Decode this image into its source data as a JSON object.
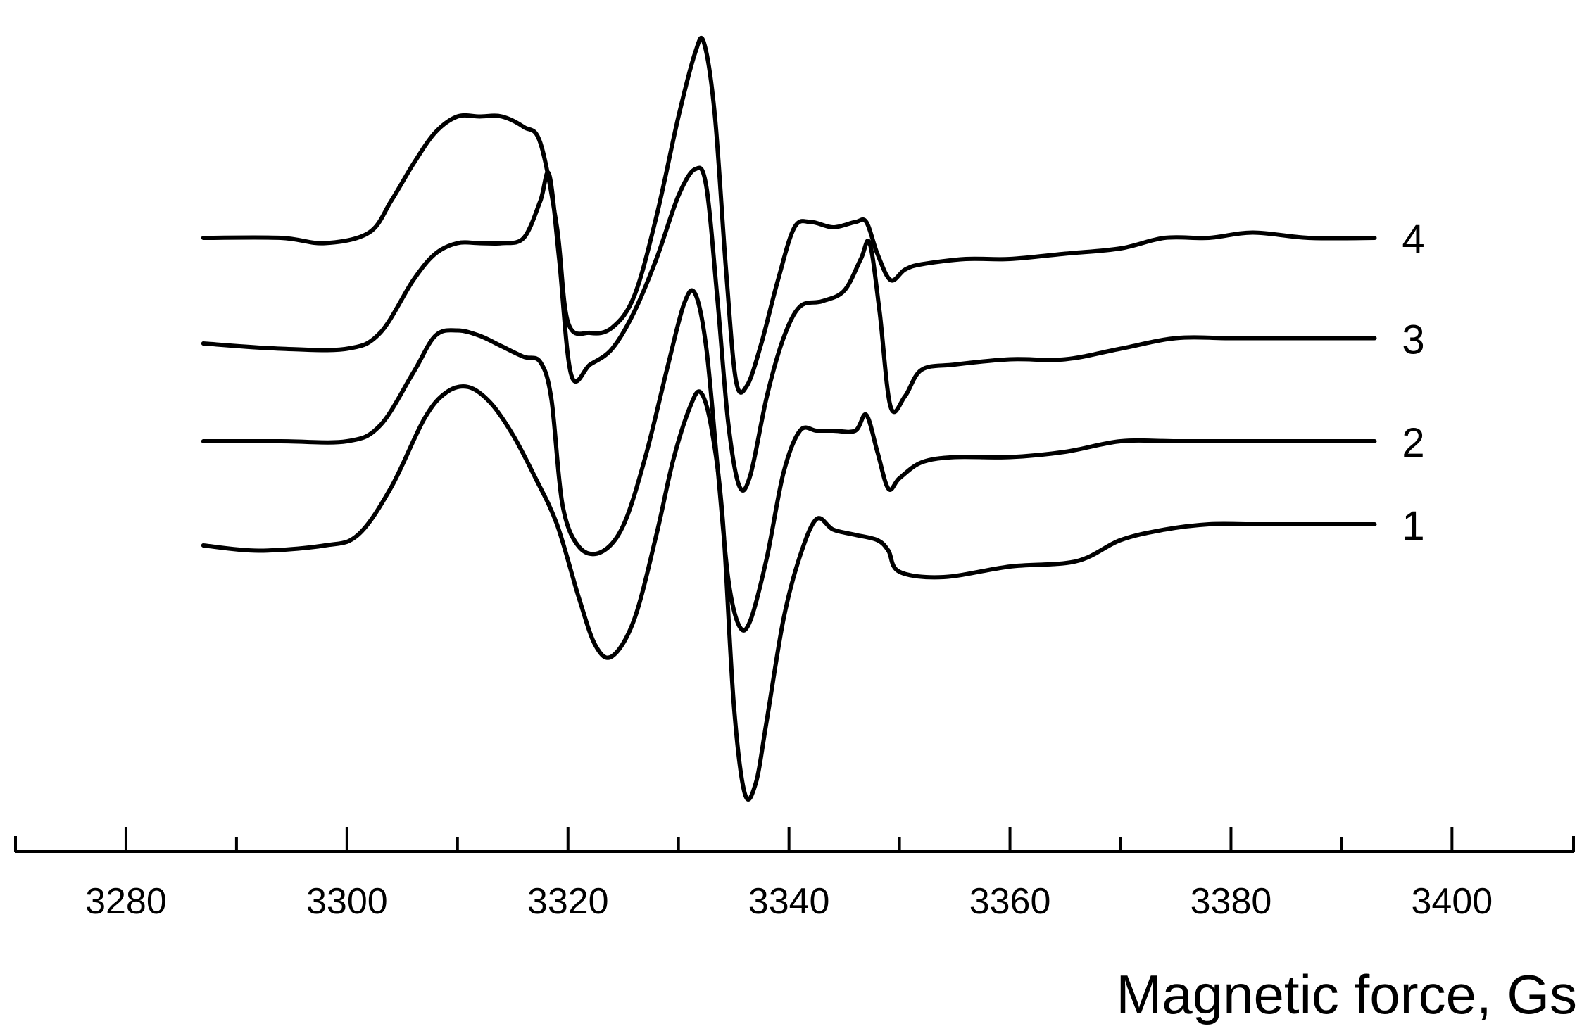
{
  "chart_data": {
    "type": "line",
    "title": "",
    "xlabel": "Magnetic force, Gs",
    "ylabel": "",
    "xlim": [
      3270,
      3411
    ],
    "x_ticks_major": [
      3280,
      3300,
      3320,
      3340,
      3360,
      3380,
      3400
    ],
    "x_tick_labels": [
      "3280",
      "3300",
      "3320",
      "3340",
      "3360",
      "3380",
      "3400"
    ],
    "x_ticks_minor": [
      3290,
      3310,
      3330,
      3350,
      3370,
      3390
    ],
    "y_axis_shown": false,
    "grid": false,
    "legend": "inline labels at right end of each curve",
    "series": [
      {
        "name": "1",
        "points": [
          [
            3287,
            0
          ],
          [
            3292,
            -1
          ],
          [
            3298,
            0
          ],
          [
            3301,
            2
          ],
          [
            3304,
            11
          ],
          [
            3307,
            24
          ],
          [
            3309,
            29
          ],
          [
            3311,
            30
          ],
          [
            3313,
            27
          ],
          [
            3315,
            21
          ],
          [
            3317,
            13
          ],
          [
            3319,
            4
          ],
          [
            3321,
            -10
          ],
          [
            3322.5,
            -19
          ],
          [
            3324,
            -21
          ],
          [
            3326,
            -14
          ],
          [
            3328,
            2
          ],
          [
            3329.5,
            16
          ],
          [
            3331,
            26
          ],
          [
            3332,
            29
          ],
          [
            3333,
            22
          ],
          [
            3334,
            5
          ],
          [
            3335,
            -30
          ],
          [
            3336,
            -47
          ],
          [
            3337,
            -45
          ],
          [
            3338,
            -33
          ],
          [
            3339.5,
            -14
          ],
          [
            3341,
            -2
          ],
          [
            3342.5,
            5
          ],
          [
            3344,
            3
          ],
          [
            3346,
            2
          ],
          [
            3348,
            1
          ],
          [
            3349,
            -1
          ],
          [
            3350,
            -5
          ],
          [
            3354,
            -6
          ],
          [
            3360,
            -4
          ],
          [
            3366,
            -3
          ],
          [
            3370,
            1
          ],
          [
            3374,
            3
          ],
          [
            3378,
            4
          ],
          [
            3382,
            4
          ],
          [
            3387,
            4
          ],
          [
            3393,
            4
          ]
        ]
      },
      {
        "name": "2",
        "points": [
          [
            3287,
            0
          ],
          [
            3294,
            0
          ],
          [
            3300,
            0
          ],
          [
            3303,
            3
          ],
          [
            3306,
            13
          ],
          [
            3308,
            20
          ],
          [
            3310,
            21
          ],
          [
            3312,
            20
          ],
          [
            3314,
            18
          ],
          [
            3316,
            16
          ],
          [
            3317.5,
            15
          ],
          [
            3318.5,
            8
          ],
          [
            3319.5,
            -12
          ],
          [
            3321,
            -20
          ],
          [
            3323,
            -21
          ],
          [
            3325,
            -16
          ],
          [
            3327,
            -3
          ],
          [
            3329,
            14
          ],
          [
            3330.5,
            26
          ],
          [
            3331.5,
            28
          ],
          [
            3332.5,
            18
          ],
          [
            3333.5,
            -4
          ],
          [
            3334.5,
            -26
          ],
          [
            3335.5,
            -35
          ],
          [
            3336.5,
            -34
          ],
          [
            3338,
            -22
          ],
          [
            3339.5,
            -6
          ],
          [
            3341,
            2
          ],
          [
            3342.5,
            2
          ],
          [
            3344,
            2
          ],
          [
            3346,
            2
          ],
          [
            3347,
            5
          ],
          [
            3348,
            -2
          ],
          [
            3349,
            -9
          ],
          [
            3350,
            -7
          ],
          [
            3352,
            -4
          ],
          [
            3355,
            -3
          ],
          [
            3360,
            -3
          ],
          [
            3365,
            -2
          ],
          [
            3370,
            0
          ],
          [
            3375,
            0
          ],
          [
            3380,
            0
          ],
          [
            3385,
            0
          ],
          [
            3389,
            0
          ],
          [
            3393,
            0
          ]
        ]
      },
      {
        "name": "3",
        "points": [
          [
            3287,
            0
          ],
          [
            3294,
            -1
          ],
          [
            3300,
            -1
          ],
          [
            3303,
            2
          ],
          [
            3306,
            12
          ],
          [
            3308,
            17
          ],
          [
            3310,
            19
          ],
          [
            3312,
            19
          ],
          [
            3314,
            19
          ],
          [
            3316,
            20
          ],
          [
            3317.5,
            27
          ],
          [
            3318.3,
            32
          ],
          [
            3319.2,
            16
          ],
          [
            3320.3,
            -6
          ],
          [
            3322,
            -4
          ],
          [
            3324,
            -1
          ],
          [
            3326,
            6
          ],
          [
            3328,
            16
          ],
          [
            3330,
            28
          ],
          [
            3331.5,
            33
          ],
          [
            3332.5,
            30
          ],
          [
            3333.5,
            9
          ],
          [
            3334.5,
            -15
          ],
          [
            3335.5,
            -27
          ],
          [
            3336.5,
            -25
          ],
          [
            3338,
            -10
          ],
          [
            3339.5,
            1
          ],
          [
            3341,
            7
          ],
          [
            3343,
            8
          ],
          [
            3345,
            10
          ],
          [
            3346.5,
            16
          ],
          [
            3347.3,
            19
          ],
          [
            3348.2,
            6
          ],
          [
            3349.2,
            -12
          ],
          [
            3350.5,
            -10
          ],
          [
            3352,
            -5
          ],
          [
            3355,
            -4
          ],
          [
            3360,
            -3
          ],
          [
            3365,
            -3
          ],
          [
            3370,
            -1
          ],
          [
            3375,
            1
          ],
          [
            3380,
            1
          ],
          [
            3385,
            1
          ],
          [
            3389,
            1
          ],
          [
            3393,
            1
          ]
        ]
      },
      {
        "name": "4",
        "points": [
          [
            3287,
            0
          ],
          [
            3294,
            0
          ],
          [
            3298,
            -1
          ],
          [
            3302,
            1
          ],
          [
            3304,
            7
          ],
          [
            3306,
            14
          ],
          [
            3308,
            20
          ],
          [
            3310,
            23
          ],
          [
            3312,
            23
          ],
          [
            3314,
            23
          ],
          [
            3316,
            21
          ],
          [
            3317.5,
            18
          ],
          [
            3319,
            2
          ],
          [
            3320,
            -16
          ],
          [
            3322,
            -18
          ],
          [
            3324,
            -17
          ],
          [
            3326,
            -11
          ],
          [
            3328,
            4
          ],
          [
            3330,
            23
          ],
          [
            3331.5,
            35
          ],
          [
            3332.3,
            37
          ],
          [
            3333.3,
            23
          ],
          [
            3334.3,
            -6
          ],
          [
            3335.2,
            -27
          ],
          [
            3336.2,
            -28
          ],
          [
            3337.5,
            -20
          ],
          [
            3339,
            -8
          ],
          [
            3340.5,
            2
          ],
          [
            3342,
            3
          ],
          [
            3344,
            2
          ],
          [
            3346,
            3
          ],
          [
            3347,
            3
          ],
          [
            3348,
            -3
          ],
          [
            3349.2,
            -8
          ],
          [
            3350.5,
            -6
          ],
          [
            3352,
            -5
          ],
          [
            3356,
            -4
          ],
          [
            3360,
            -4
          ],
          [
            3365,
            -3
          ],
          [
            3370,
            -2
          ],
          [
            3374,
            0
          ],
          [
            3378,
            0
          ],
          [
            3382,
            1
          ],
          [
            3387,
            0
          ],
          [
            3393,
            0
          ]
        ]
      }
    ]
  }
}
